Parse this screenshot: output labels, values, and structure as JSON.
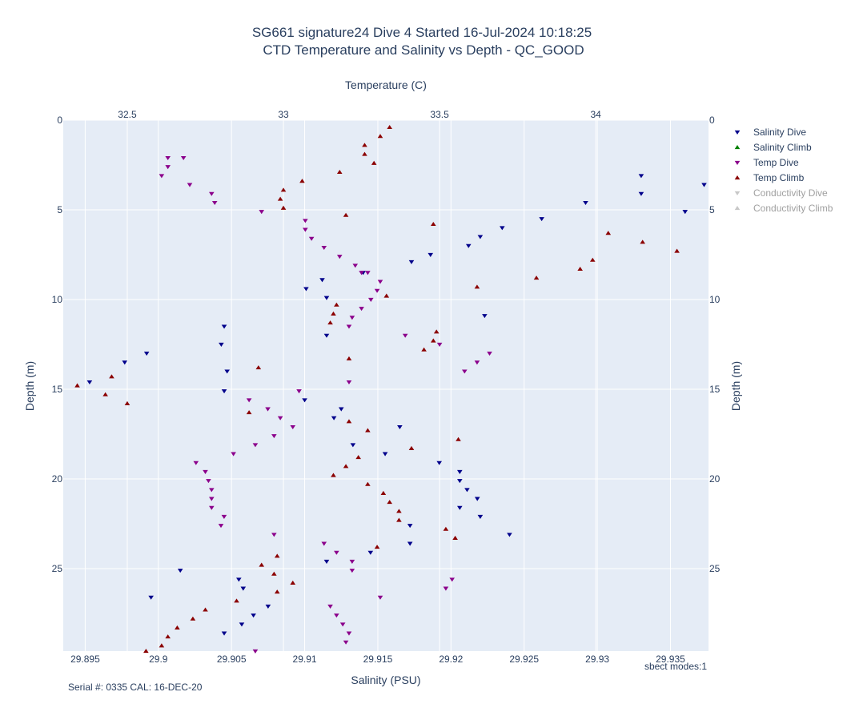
{
  "chart_data": {
    "type": "scatter",
    "title": "SG661 signature24 Dive 4 Started 16-Jul-2024 10:18:25",
    "subtitle": "CTD Temperature and Salinity vs Depth - QC_GOOD",
    "xlabel": "Salinity (PSU)",
    "x2label": "Temperature (C)",
    "ylabel": "Depth (m)",
    "xlim": [
      29.8935,
      29.9376
    ],
    "x2lim": [
      32.295,
      34.361
    ],
    "ylim": [
      29.6,
      0
    ],
    "x_ticks": [
      29.895,
      29.9,
      29.905,
      29.91,
      29.915,
      29.92,
      29.925,
      29.93,
      29.935
    ],
    "x_tick_labels": [
      "29.895",
      "29.9",
      "29.905",
      "29.91",
      "29.915",
      "29.92",
      "29.925",
      "29.93",
      "29.935"
    ],
    "x2_ticks": [
      32.5,
      33,
      33.5,
      34
    ],
    "x2_tick_labels": [
      "32.5",
      "33",
      "33.5",
      "34"
    ],
    "y_ticks": [
      0,
      5,
      10,
      15,
      20,
      25
    ],
    "y_tick_labels": [
      "0",
      "5",
      "10",
      "15",
      "20",
      "25"
    ],
    "grid": true,
    "legend_position": "right",
    "annotations": [
      {
        "text": "sbect modes:1",
        "position": "bottom-right"
      },
      {
        "text": "Serial #: 0335  CAL: 16-DEC-20",
        "position": "bottom-left"
      }
    ],
    "series": [
      {
        "name": "Salinity Dive",
        "axis": "salinity",
        "marker": "triangle-down",
        "color": "#00008b",
        "points": [
          [
            29.933,
            3.1
          ],
          [
            29.9373,
            3.6
          ],
          [
            29.933,
            4.1
          ],
          [
            29.9292,
            4.6
          ],
          [
            29.936,
            5.1
          ],
          [
            29.9262,
            5.5
          ],
          [
            29.9235,
            6.0
          ],
          [
            29.922,
            6.5
          ],
          [
            29.9212,
            7.0
          ],
          [
            29.9186,
            7.5
          ],
          [
            29.9173,
            7.9
          ],
          [
            29.914,
            8.5
          ],
          [
            29.9112,
            8.9
          ],
          [
            29.9101,
            9.4
          ],
          [
            29.9115,
            9.9
          ],
          [
            29.9223,
            10.9
          ],
          [
            29.9045,
            11.5
          ],
          [
            29.9115,
            12.0
          ],
          [
            29.9043,
            12.5
          ],
          [
            29.8992,
            13.0
          ],
          [
            29.8977,
            13.5
          ],
          [
            29.9047,
            14.0
          ],
          [
            29.8953,
            14.6
          ],
          [
            29.9045,
            15.1
          ],
          [
            29.91,
            15.6
          ],
          [
            29.9125,
            16.1
          ],
          [
            29.912,
            16.6
          ],
          [
            29.9165,
            17.1
          ],
          [
            29.9133,
            18.1
          ],
          [
            29.9155,
            18.6
          ],
          [
            29.9192,
            19.1
          ],
          [
            29.9206,
            19.6
          ],
          [
            29.9206,
            20.1
          ],
          [
            29.9211,
            20.6
          ],
          [
            29.9218,
            21.1
          ],
          [
            29.9206,
            21.6
          ],
          [
            29.922,
            22.1
          ],
          [
            29.9172,
            22.6
          ],
          [
            29.924,
            23.1
          ],
          [
            29.9172,
            23.6
          ],
          [
            29.9145,
            24.1
          ],
          [
            29.9115,
            24.6
          ],
          [
            29.9015,
            25.1
          ],
          [
            29.9055,
            25.6
          ],
          [
            29.9058,
            26.1
          ],
          [
            29.8995,
            26.6
          ],
          [
            29.9075,
            27.1
          ],
          [
            29.9065,
            27.6
          ],
          [
            29.9057,
            28.1
          ],
          [
            29.9045,
            28.6
          ]
        ]
      },
      {
        "name": "Salinity Climb",
        "axis": "salinity",
        "marker": "triangle-up",
        "color": "#008000",
        "points": []
      },
      {
        "name": "Temp Dive",
        "axis": "temperature",
        "marker": "triangle-down",
        "color": "#8b008b",
        "points": [
          [
            32.63,
            2.1
          ],
          [
            32.68,
            2.1
          ],
          [
            32.63,
            2.6
          ],
          [
            32.61,
            3.1
          ],
          [
            32.7,
            3.6
          ],
          [
            32.77,
            4.1
          ],
          [
            32.78,
            4.6
          ],
          [
            32.93,
            5.1
          ],
          [
            33.07,
            5.6
          ],
          [
            33.07,
            6.1
          ],
          [
            33.09,
            6.6
          ],
          [
            33.13,
            7.1
          ],
          [
            33.18,
            7.6
          ],
          [
            33.23,
            8.1
          ],
          [
            33.25,
            8.5
          ],
          [
            33.27,
            8.5
          ],
          [
            33.31,
            9.0
          ],
          [
            33.3,
            9.5
          ],
          [
            33.28,
            10.0
          ],
          [
            33.25,
            10.5
          ],
          [
            33.22,
            11.0
          ],
          [
            33.21,
            11.5
          ],
          [
            33.39,
            12.0
          ],
          [
            33.5,
            12.5
          ],
          [
            33.66,
            13.0
          ],
          [
            33.62,
            13.5
          ],
          [
            33.58,
            14.0
          ],
          [
            33.21,
            14.6
          ],
          [
            33.05,
            15.1
          ],
          [
            32.89,
            15.6
          ],
          [
            32.95,
            16.1
          ],
          [
            32.99,
            16.6
          ],
          [
            33.03,
            17.1
          ],
          [
            32.97,
            17.6
          ],
          [
            32.91,
            18.1
          ],
          [
            32.84,
            18.6
          ],
          [
            32.72,
            19.1
          ],
          [
            32.75,
            19.6
          ],
          [
            32.76,
            20.1
          ],
          [
            32.77,
            20.6
          ],
          [
            32.77,
            21.1
          ],
          [
            32.77,
            21.6
          ],
          [
            32.81,
            22.1
          ],
          [
            32.8,
            22.6
          ],
          [
            32.97,
            23.1
          ],
          [
            33.13,
            23.6
          ],
          [
            33.17,
            24.1
          ],
          [
            33.22,
            24.6
          ],
          [
            33.22,
            25.1
          ],
          [
            33.54,
            25.6
          ],
          [
            33.52,
            26.1
          ],
          [
            33.31,
            26.6
          ],
          [
            33.15,
            27.1
          ],
          [
            33.17,
            27.6
          ],
          [
            33.19,
            28.1
          ],
          [
            33.21,
            28.6
          ],
          [
            33.2,
            29.1
          ],
          [
            32.91,
            29.6
          ]
        ]
      },
      {
        "name": "Temp Climb",
        "axis": "temperature",
        "marker": "triangle-up",
        "color": "#8b0000",
        "points": [
          [
            33.34,
            0.4
          ],
          [
            33.31,
            0.9
          ],
          [
            33.26,
            1.4
          ],
          [
            33.26,
            1.9
          ],
          [
            33.29,
            2.4
          ],
          [
            33.18,
            2.9
          ],
          [
            33.06,
            3.4
          ],
          [
            33.0,
            3.9
          ],
          [
            32.99,
            4.4
          ],
          [
            33.0,
            4.9
          ],
          [
            33.2,
            5.3
          ],
          [
            33.48,
            5.8
          ],
          [
            34.04,
            6.3
          ],
          [
            34.15,
            6.8
          ],
          [
            34.26,
            7.3
          ],
          [
            33.99,
            7.8
          ],
          [
            33.95,
            8.3
          ],
          [
            33.81,
            8.8
          ],
          [
            33.62,
            9.3
          ],
          [
            33.33,
            9.8
          ],
          [
            33.17,
            10.3
          ],
          [
            33.16,
            10.8
          ],
          [
            33.15,
            11.3
          ],
          [
            33.49,
            11.8
          ],
          [
            33.48,
            12.3
          ],
          [
            33.45,
            12.8
          ],
          [
            33.21,
            13.3
          ],
          [
            32.92,
            13.8
          ],
          [
            32.45,
            14.3
          ],
          [
            32.34,
            14.8
          ],
          [
            32.43,
            15.3
          ],
          [
            32.5,
            15.8
          ],
          [
            32.89,
            16.3
          ],
          [
            33.21,
            16.8
          ],
          [
            33.27,
            17.3
          ],
          [
            33.56,
            17.8
          ],
          [
            33.41,
            18.3
          ],
          [
            33.24,
            18.8
          ],
          [
            33.2,
            19.3
          ],
          [
            33.16,
            19.8
          ],
          [
            33.27,
            20.3
          ],
          [
            33.32,
            20.8
          ],
          [
            33.34,
            21.3
          ],
          [
            33.37,
            21.8
          ],
          [
            33.37,
            22.3
          ],
          [
            33.52,
            22.8
          ],
          [
            33.55,
            23.3
          ],
          [
            33.3,
            23.8
          ],
          [
            32.98,
            24.3
          ],
          [
            32.93,
            24.8
          ],
          [
            32.97,
            25.3
          ],
          [
            33.03,
            25.8
          ],
          [
            32.98,
            26.3
          ],
          [
            32.85,
            26.8
          ],
          [
            32.75,
            27.3
          ],
          [
            32.71,
            27.8
          ],
          [
            32.66,
            28.3
          ],
          [
            32.63,
            28.8
          ],
          [
            32.61,
            29.3
          ],
          [
            32.56,
            29.6
          ]
        ]
      },
      {
        "name": "Conductivity Dive",
        "axis": "none",
        "marker": "triangle-down",
        "color": "#c8c8c8",
        "legend_dimmed": true,
        "points": []
      },
      {
        "name": "Conductivity Climb",
        "axis": "none",
        "marker": "triangle-up",
        "color": "#c8c8c8",
        "legend_dimmed": true,
        "points": []
      }
    ]
  }
}
